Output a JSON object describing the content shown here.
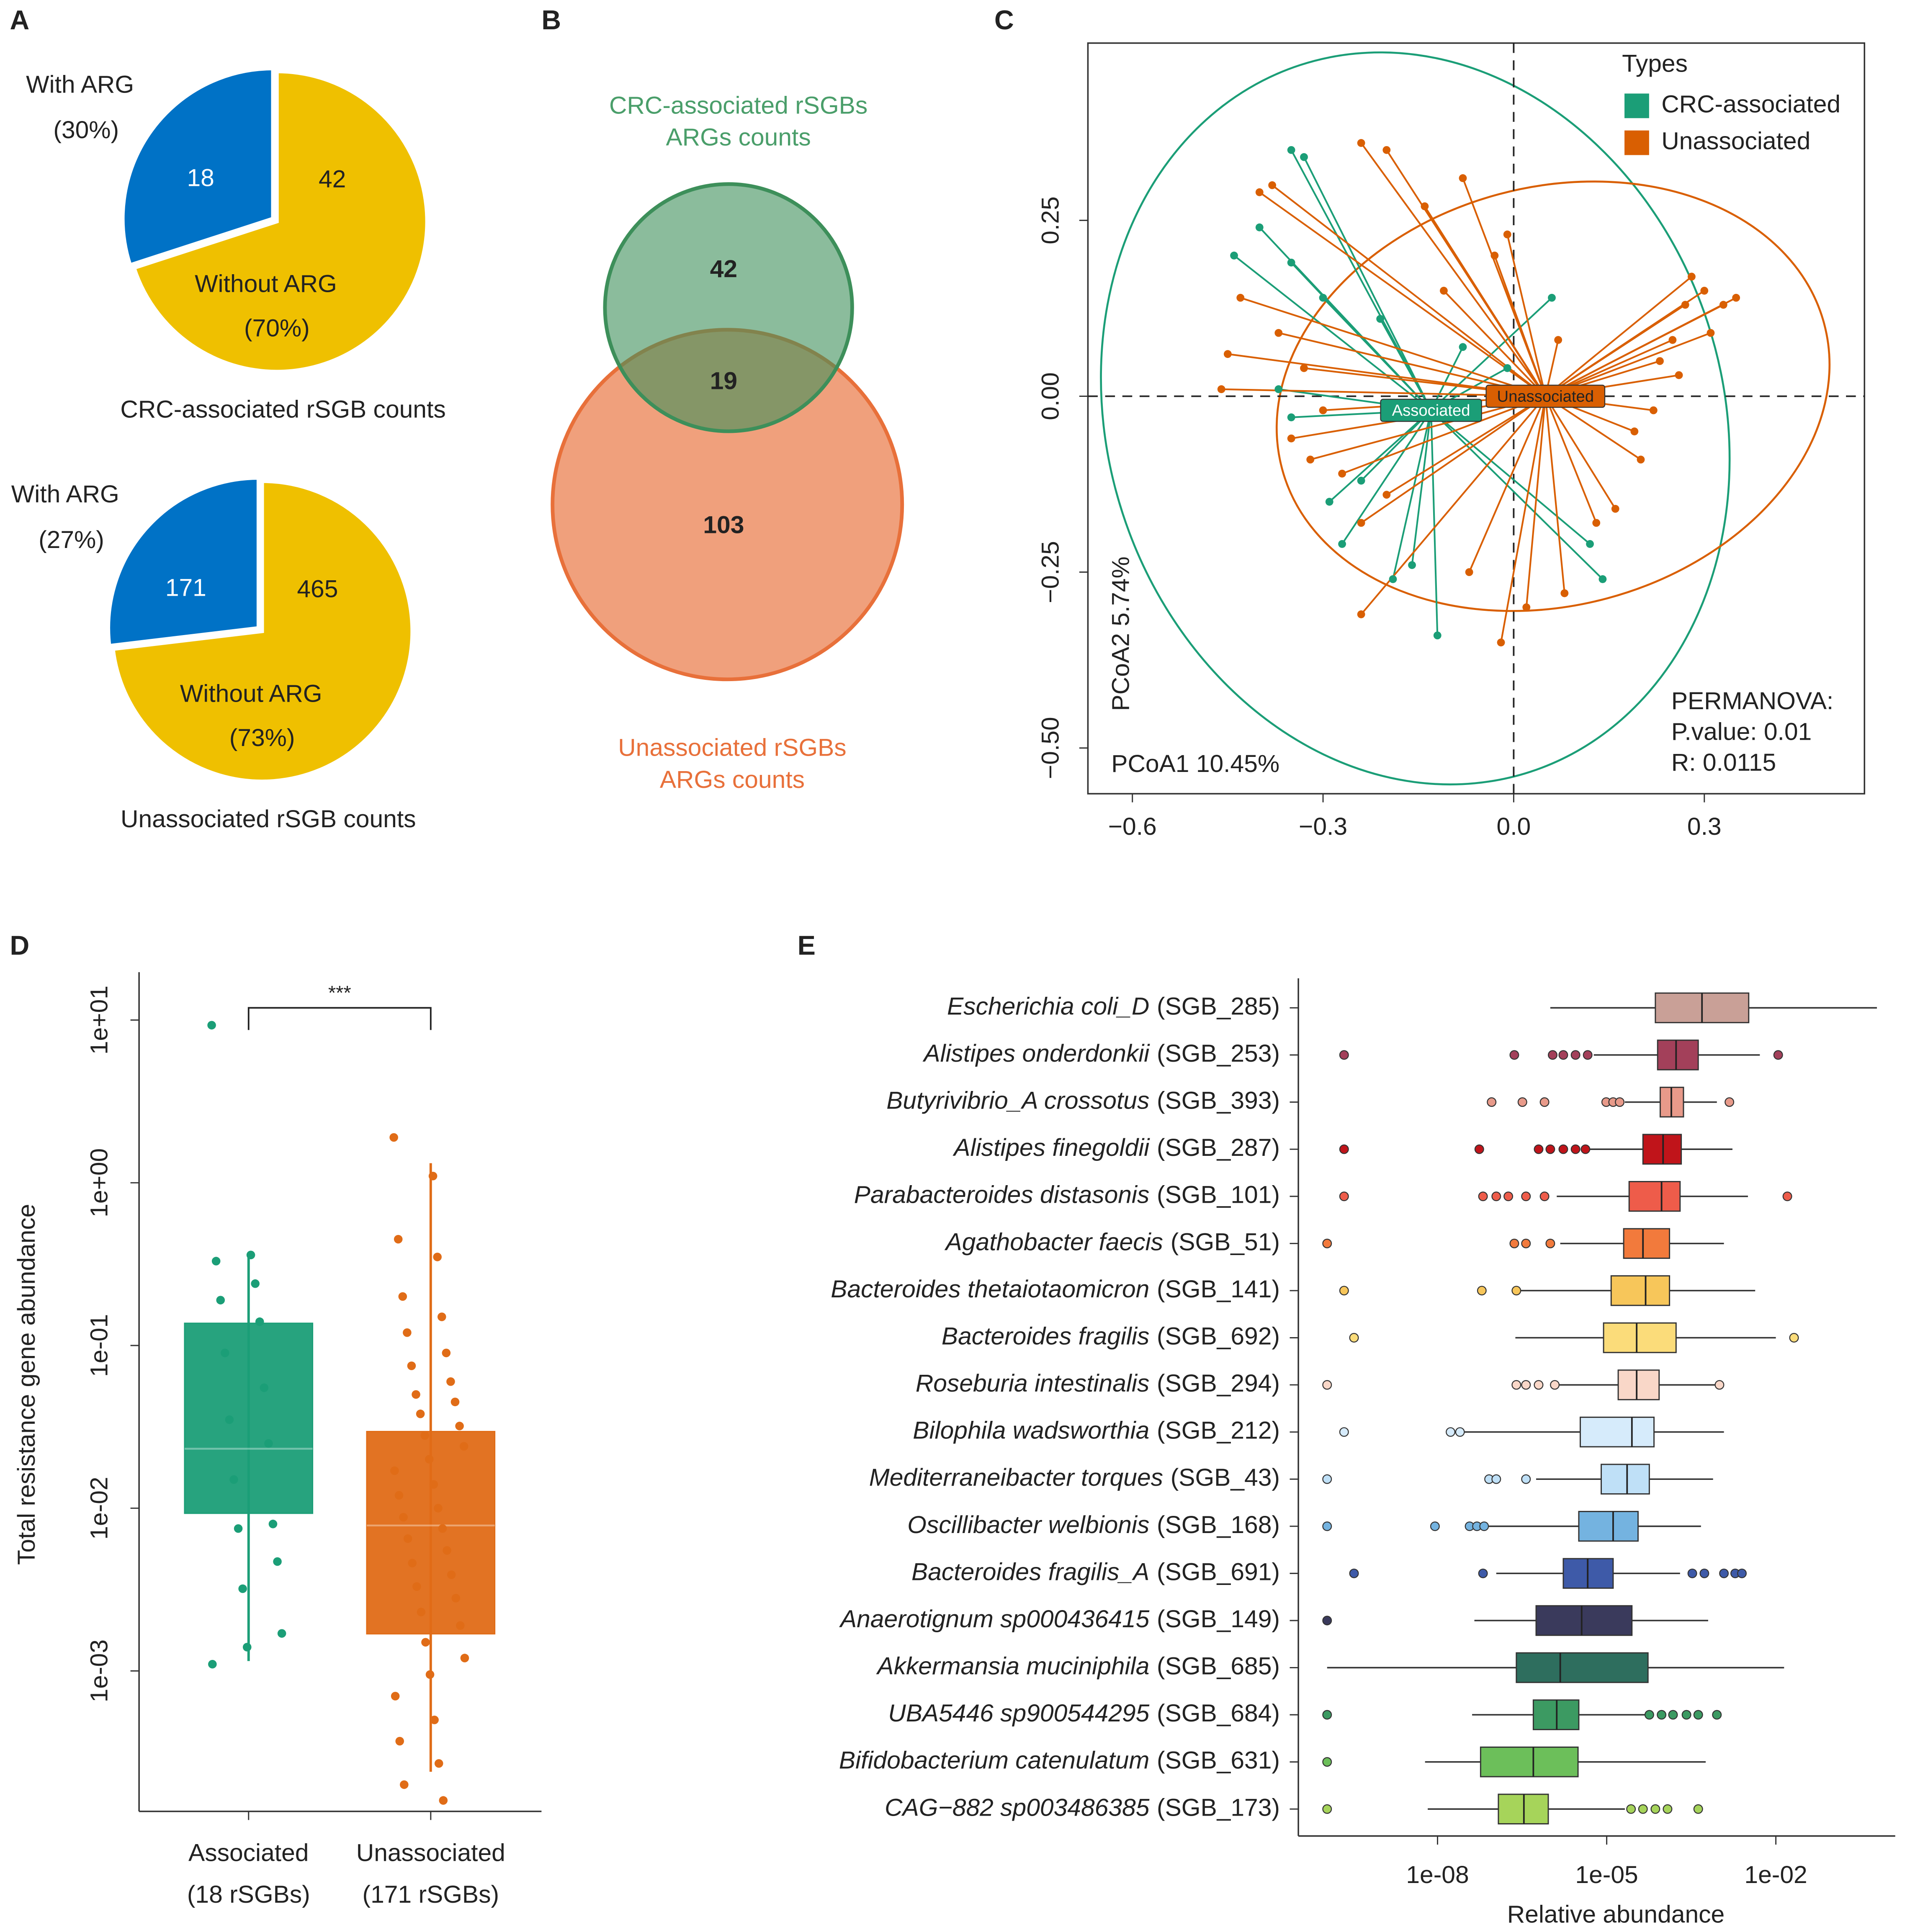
{
  "chart_data": [
    {
      "type": "pie",
      "panel": "A",
      "title": "CRC-associated rSGB counts",
      "categories": [
        "With ARG",
        "Without ARG"
      ],
      "values": [
        18,
        42
      ],
      "percent_labels": [
        "(30%)",
        "(70%)"
      ],
      "colors": [
        "#0072c6",
        "#efc000"
      ]
    },
    {
      "type": "pie",
      "title": "Unassociated rSGB counts",
      "categories": [
        "With ARG",
        "Without ARG"
      ],
      "values": [
        171,
        465
      ],
      "percent_labels": [
        "(27%)",
        "(73%)"
      ],
      "colors": [
        "#0072c6",
        "#efc000"
      ]
    },
    {
      "type": "venn",
      "panel": "B",
      "sets": [
        {
          "name": "CRC-associated rSGBs",
          "subtitle": "ARGs counts",
          "color": "#3d8f5a"
        },
        {
          "name": "Unassociated rSGBs",
          "subtitle": "ARGs counts",
          "color": "#e8703a"
        }
      ],
      "values": [
        42,
        19,
        103
      ]
    },
    {
      "type": "scatter",
      "panel": "C",
      "xlim": [
        -0.67,
        0.552
      ],
      "ylim": [
        -0.565,
        0.502
      ],
      "xticks": [
        {
          "value": -0.6,
          "label": "−0.6"
        },
        {
          "value": -0.3,
          "label": "−0.3"
        },
        {
          "value": 0,
          "label": "0.0"
        },
        0.3
      ],
      "yticks": [
        {
          "value": -0.5,
          "label": "−0.50"
        },
        {
          "value": -0.25,
          "label": "−0.25"
        },
        {
          "value": 0,
          "label": "0.00"
        },
        0.25
      ],
      "xlabel": "PCoA1 10.45%",
      "ylabel": "PCoA2 5.74%",
      "legend_title": "Types",
      "annotations": [
        "PERMANOVA:",
        "P.value: 0.01",
        "R: 0.0115"
      ],
      "series": [
        {
          "name": "CRC-associated",
          "color": "#1b9e77",
          "centroid_label": "Associated",
          "centroid": [
            -0.13,
            -0.02
          ],
          "x": [
            -0.44,
            -0.4,
            -0.35,
            -0.33,
            -0.35,
            -0.3,
            -0.37,
            -0.29,
            -0.27,
            -0.19,
            -0.12,
            -0.16,
            -0.24,
            0.06,
            -0.01,
            0.14,
            -0.35,
            -0.08,
            -0.21,
            0.12
          ],
          "y": [
            0.2,
            0.24,
            0.35,
            0.34,
            0.19,
            0.14,
            0.01,
            -0.15,
            -0.21,
            -0.26,
            -0.34,
            -0.24,
            -0.12,
            0.14,
            0.04,
            -0.26,
            -0.03,
            0.07,
            0.11,
            -0.21
          ]
        },
        {
          "name": "Unassociated",
          "color": "#d95f02",
          "centroid_label": "Unassociated",
          "centroid": [
            0.05,
            0.0
          ],
          "x": [
            -0.4,
            -0.38,
            -0.24,
            -0.2,
            -0.43,
            -0.45,
            -0.37,
            -0.33,
            -0.3,
            -0.35,
            -0.32,
            -0.27,
            -0.24,
            -0.2,
            -0.24,
            -0.07,
            -0.02,
            0.02,
            0.08,
            0.13,
            0.16,
            0.19,
            0.22,
            0.25,
            0.27,
            0.28,
            0.3,
            0.33,
            0.35,
            0.31,
            0.26,
            0.23,
            0.2,
            -0.03,
            -0.08,
            -0.14,
            -0.01,
            0.07,
            -0.11,
            -0.46
          ],
          "y": [
            0.29,
            0.3,
            0.36,
            0.35,
            0.14,
            0.06,
            0.09,
            0.04,
            -0.02,
            -0.06,
            -0.09,
            -0.11,
            -0.18,
            -0.14,
            -0.31,
            -0.25,
            -0.35,
            -0.3,
            -0.28,
            -0.18,
            -0.16,
            -0.05,
            -0.02,
            0.08,
            0.13,
            0.17,
            0.15,
            0.13,
            0.14,
            0.09,
            0.03,
            0.05,
            -0.09,
            0.2,
            0.31,
            0.27,
            0.23,
            0.08,
            0.15,
            0.01
          ]
        }
      ]
    },
    {
      "type": "box",
      "panel": "D",
      "categories": [
        "Associated",
        "Unassociated"
      ],
      "category_notes": [
        "(18 rSGBs)",
        "(171 rSGBs)"
      ],
      "ylabel": "Total resistance gene abundance",
      "log_y": true,
      "ylim": [
        0.000137,
        19.7
      ],
      "yticks": [
        {
          "value": 0.001,
          "label": "1e-03"
        },
        {
          "value": 0.01,
          "label": "1e-02"
        },
        {
          "value": 0.1,
          "label": "1e-01"
        },
        {
          "value": 1,
          "label": "1e+00"
        },
        {
          "value": 10,
          "label": "1e+01"
        }
      ],
      "significance": "***",
      "boxes": [
        {
          "color": "#1b9e77",
          "stats": [
            0.00115,
            0.0093,
            0.0232,
            0.137,
            0.356
          ],
          "points": [
            9.3,
            0.36,
            0.33,
            0.24,
            0.19,
            0.14,
            0.09,
            0.055,
            0.035,
            0.025,
            0.015,
            0.008,
            0.0075,
            0.0047,
            0.0032,
            0.0017,
            0.0014,
            0.0011
          ]
        },
        {
          "color": "#e06c17",
          "stats": [
            0.00024,
            0.00169,
            0.00783,
            0.0296,
            1.32
          ],
          "points": [
            1.9,
            1.1,
            0.45,
            0.35,
            0.2,
            0.15,
            0.12,
            0.09,
            0.075,
            0.06,
            0.05,
            0.045,
            0.038,
            0.032,
            0.028,
            0.024,
            0.02,
            0.017,
            0.014,
            0.012,
            0.01,
            0.0088,
            0.0075,
            0.0065,
            0.0055,
            0.0046,
            0.0039,
            0.0033,
            0.0028,
            0.0023,
            0.0019,
            0.0015,
            0.0012,
            0.00095,
            0.0007,
            0.0005,
            0.00037,
            0.00027,
            0.0002,
            0.00016
          ]
        }
      ]
    },
    {
      "type": "hbox",
      "panel": "E",
      "xlabel": "Relative abundance",
      "log_x": true,
      "xlim": [
        3.4e-11,
        1.31
      ],
      "xticks": [
        {
          "value": 1e-08,
          "label": "1e-08"
        },
        {
          "value": 1e-05,
          "label": "1e-05"
        },
        {
          "value": 0.01,
          "label": "1e-02"
        }
      ],
      "categories": [
        "Escherichia coli_D",
        "Alistipes onderdonkii",
        "Butyrivibrio_A crossotus",
        "Alistipes finegoldii",
        "Parabacteroides distasonis",
        "Agathobacter faecis",
        "Bacteroides thetaiotaomicron",
        "Bacteroides fragilis",
        "Roseburia intestinalis",
        "Bilophila wadsworthia",
        "Mediterraneibacter torques",
        "Oscillibacter welbionis",
        "Bacteroides fragilis_A",
        "Anaerotignum sp000436415",
        "Akkermansia muciniphila",
        "UBA5446 sp900544295",
        "Bifidobacterium catenulatum",
        "CAG−882 sp003486385"
      ],
      "sgb_ids": [
        "(SGB_285)",
        "(SGB_253)",
        "(SGB_393)",
        "(SGB_287)",
        "(SGB_101)",
        "(SGB_51)",
        "(SGB_141)",
        "(SGB_692)",
        "(SGB_294)",
        "(SGB_212)",
        "(SGB_43)",
        "(SGB_168)",
        "(SGB_691)",
        "(SGB_149)",
        "(SGB_685)",
        "(SGB_684)",
        "(SGB_631)",
        "(SGB_173)"
      ],
      "boxes": [
        {
          "color": "#c9a097",
          "stats": [
            1e-06,
            7.3e-05,
            0.00049,
            0.0033,
            0.62
          ],
          "outliers": []
        },
        {
          "color": "#a3405a",
          "stats": [
            5.9e-06,
            8e-05,
            0.00017,
            0.00042,
            0.0052
          ],
          "outliers": [
            2.2e-10,
            2.3e-07,
            1.1e-06,
            1.7e-06,
            2.8e-06,
            4.6e-06,
            0.011
          ]
        },
        {
          "color": "#e89a8a",
          "stats": [
            2.1e-05,
            8.9e-05,
            0.00014,
            0.00023,
            0.0009
          ],
          "outliers": [
            9.1e-08,
            3.2e-07,
            7.9e-07,
            9.8e-06,
            1.3e-05,
            1.7e-05,
            0.0015
          ]
        },
        {
          "color": "#c0141a",
          "stats": [
            4.6e-06,
            4.4e-05,
            0.0001,
            0.00021,
            0.0017
          ],
          "outliers": [
            2.2e-10,
            5.5e-08,
            6.2e-07,
            1e-06,
            1.7e-06,
            2.8e-06,
            4.2e-06
          ]
        },
        {
          "color": "#ee5c4a",
          "stats": [
            1.3e-06,
            2.5e-05,
            9.4e-05,
            0.0002,
            0.0032
          ],
          "outliers": [
            2.2e-10,
            6.4e-08,
            1.1e-07,
            1.8e-07,
            3.7e-07,
            7.9e-07,
            0.016
          ]
        },
        {
          "color": "#f27a3c",
          "stats": [
            1.5e-06,
            2e-05,
            4.4e-05,
            0.00013,
            0.0012
          ],
          "outliers": [
            1.1e-10,
            2.3e-07,
            3.7e-07,
            1e-06
          ]
        },
        {
          "color": "#f7c65a",
          "stats": [
            3e-07,
            1.2e-05,
            4.9e-05,
            0.00013,
            0.0043
          ],
          "outliers": [
            2.2e-10,
            6.1e-08,
            2.5e-07
          ]
        },
        {
          "color": "#fbdc7a",
          "stats": [
            2.4e-07,
            8.8e-06,
            3.4e-05,
            0.00017,
            0.01
          ],
          "outliers": [
            3.3e-10,
            0.021
          ]
        },
        {
          "color": "#f9d7c8",
          "stats": [
            1.3e-06,
            1.6e-05,
            3.4e-05,
            8.5e-05,
            0.0009
          ],
          "outliers": [
            1.1e-10,
            2.5e-07,
            3.7e-07,
            6.2e-07,
            1.2e-06,
            0.001
          ]
        },
        {
          "color": "#d6ebfb",
          "stats": [
            3e-08,
            3.4e-06,
            2.8e-05,
            6.9e-05,
            0.0012
          ],
          "outliers": [
            2.2e-10,
            1.7e-08,
            2.5e-08
          ]
        },
        {
          "color": "#bfe0f7",
          "stats": [
            5.6e-07,
            8e-06,
            2.3e-05,
            5.7e-05,
            0.00077
          ],
          "outliers": [
            1.1e-10,
            8.2e-08,
            1.1e-07,
            3.7e-07
          ]
        },
        {
          "color": "#74b3e0",
          "stats": [
            7.5e-08,
            3.2e-06,
            1.3e-05,
            3.6e-05,
            0.00047
          ],
          "outliers": [
            1.1e-10,
            9e-09,
            3.7e-08,
            5e-08,
            6.7e-08
          ]
        },
        {
          "color": "#3e5aa8",
          "stats": [
            1.1e-07,
            1.7e-06,
            4.6e-06,
            1.3e-05,
            0.0002
          ],
          "outliers": [
            3.3e-10,
            6.4e-08,
            0.00033,
            0.00054,
            0.0012,
            0.0019,
            0.0025
          ]
        },
        {
          "color": "#3a3a5c",
          "stats": [
            4.5e-08,
            5.6e-07,
            3.6e-06,
            2.8e-05,
            0.00063
          ],
          "outliers": [
            1.1e-10
          ]
        },
        {
          "color": "#2e6e5e",
          "stats": [
            1.1e-10,
            2.5e-07,
            1.5e-06,
            5.4e-05,
            0.014
          ],
          "outliers": []
        },
        {
          "color": "#3c9a62",
          "stats": [
            4.1e-08,
            5e-07,
            1.3e-06,
            3.2e-06,
            5.1e-05
          ],
          "outliers": [
            1.1e-10,
            5.7e-05,
            9.4e-05,
            0.00015,
            0.00026,
            0.00042,
            0.0009
          ]
        },
        {
          "color": "#6cbf5a",
          "stats": [
            6e-09,
            5.8e-08,
            5e-07,
            3.1e-06,
            0.00057
          ],
          "outliers": [
            1.1e-10
          ]
        },
        {
          "color": "#a6d45a",
          "stats": [
            6.7e-09,
            1.2e-07,
            3.4e-07,
            9.2e-07,
            2.1e-05
          ],
          "outliers": [
            1.1e-10,
            2.7e-05,
            4.4e-05,
            7.3e-05,
            0.00012,
            0.00042
          ]
        }
      ]
    }
  ]
}
